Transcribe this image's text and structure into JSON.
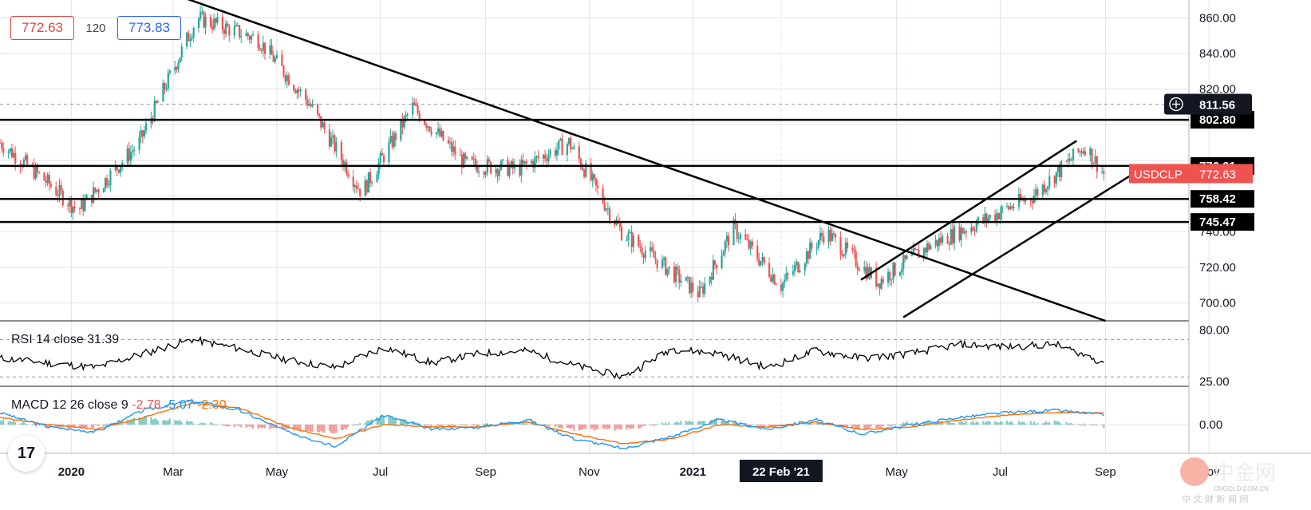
{
  "colors": {
    "up": "#26a69a",
    "down": "#ef5350",
    "line": "#000000",
    "ma_blue": "#2196f3",
    "ma_orange": "#ff6d00",
    "price_tag": "#ef5350",
    "grid": "#e0e3eb"
  },
  "trade_panel": {
    "bid": "772.63",
    "qty": "120",
    "ask": "773.83"
  },
  "chart_data": [
    {
      "type": "line",
      "name": "USDCLP",
      "x": [
        "2019-11-20",
        "2019-12-15",
        "2020-01-05",
        "2020-02-10",
        "2020-03-15",
        "2020-04-20",
        "2020-05-20",
        "2020-06-20",
        "2020-07-20",
        "2020-08-20",
        "2020-09-20",
        "2020-10-20",
        "2020-11-20",
        "2020-12-20",
        "2021-01-05",
        "2021-01-25",
        "2021-02-22",
        "2021-03-20",
        "2021-04-20",
        "2021-05-20",
        "2021-06-20",
        "2021-07-20",
        "2021-08-20",
        "2021-08-31"
      ],
      "values": [
        790,
        770,
        752,
        790,
        860,
        848,
        812,
        762,
        810,
        778,
        775,
        790,
        740,
        717,
        705,
        742,
        710,
        740,
        712,
        732,
        746,
        760,
        788,
        772.63
      ],
      "ylim": [
        690,
        870
      ],
      "y_ticks": [
        "860.00",
        "840.00",
        "820.00",
        "802.80",
        "776.91",
        "758.42",
        "745.47",
        "740.00",
        "720.00",
        "700.00"
      ],
      "x_ticks": [
        "2020",
        "Mar",
        "May",
        "Jul",
        "Sep",
        "Nov",
        "2021",
        "22 Feb '21",
        "May",
        "Jul",
        "Sep",
        "Nov"
      ],
      "horizontal_levels": [
        802.8,
        776.91,
        758.42,
        745.47
      ],
      "crosshair_price": "811.56",
      "last_price_label": "USDCLP",
      "last_price": "772.63"
    },
    {
      "type": "line",
      "name": "RSI 14 close",
      "value": "31.39",
      "ylim": [
        20,
        90
      ],
      "y_ticks": [
        "80.00",
        "25.00"
      ],
      "values": [
        50,
        45,
        40,
        55,
        70,
        60,
        48,
        40,
        62,
        45,
        55,
        58,
        42,
        30,
        60,
        55,
        40,
        58,
        50,
        55,
        65,
        62,
        65,
        46
      ]
    },
    {
      "type": "line",
      "name": "MACD 12 26 close 9",
      "values_label": [
        "-2.78",
        "-5.07",
        "-2.30"
      ],
      "y_ticks": [
        "0.00"
      ],
      "macd": [
        5,
        -1,
        -3,
        6,
        10,
        6,
        -3,
        -9,
        4,
        -2,
        -1,
        2,
        -6,
        -10,
        -5,
        2,
        -2,
        2,
        -4,
        0,
        3,
        5,
        6,
        4
      ],
      "signal": [
        3,
        0,
        -2,
        3,
        9,
        7,
        -1,
        -6,
        0,
        -1,
        -1,
        1,
        -4,
        -8,
        -6,
        0,
        -1,
        1,
        -2,
        -1,
        2,
        4,
        5,
        5
      ]
    }
  ],
  "watermark": {
    "brand": "中金网",
    "site": "CNGOLD.COM.CN",
    "tagline": "中 文 财 新 闻 网"
  }
}
